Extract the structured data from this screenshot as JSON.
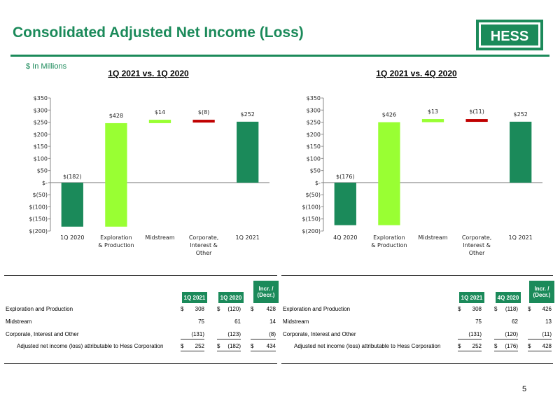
{
  "title": "Consolidated Adjusted Net Income (Loss)",
  "units": "$ In Millions",
  "logo_text": "HESS",
  "page_number": "5",
  "colors": {
    "brand_green": "#1b8a5a",
    "light_green": "#99ff33",
    "red": "#c00000"
  },
  "chart_data": [
    {
      "type": "bar",
      "subtype": "waterfall",
      "title": "1Q 2021 vs. 1Q 2020",
      "categories": [
        "1Q 2020",
        "Exploration & Production",
        "Midstream",
        "Corporate, Interest & Other",
        "1Q 2021"
      ],
      "values": [
        -182,
        428,
        14,
        -8,
        252
      ],
      "data_labels": [
        "$(182)",
        "$428",
        "$14",
        "$(8)",
        "$252"
      ],
      "ylim": [
        -200,
        350
      ],
      "yticks": [
        "$(200)",
        "$(150)",
        "$(100)",
        "$(50)",
        "$-",
        "$50",
        "$100",
        "$150",
        "$200",
        "$250",
        "$300",
        "$350"
      ]
    },
    {
      "type": "bar",
      "subtype": "waterfall",
      "title": "1Q 2021 vs. 4Q 2020",
      "categories": [
        "4Q 2020",
        "Exploration & Production",
        "Midstream",
        "Corporate, Interest & Other",
        "1Q 2021"
      ],
      "values": [
        -176,
        426,
        13,
        -11,
        252
      ],
      "data_labels": [
        "$(176)",
        "$426",
        "$13",
        "$(11)",
        "$252"
      ],
      "ylim": [
        -200,
        350
      ],
      "yticks": [
        "$(200)",
        "$(150)",
        "$(100)",
        "$(50)",
        "$-",
        "$50",
        "$100",
        "$150",
        "$200",
        "$250",
        "$300",
        "$350"
      ]
    }
  ],
  "tables": [
    {
      "headers": [
        "1Q 2021",
        "1Q 2020",
        "Incr. / (Decr.)"
      ],
      "rows": [
        {
          "label": "Exploration and Production",
          "cur_sym": "$",
          "cur": "308",
          "prev_sym": "$",
          "prev": "(120)",
          "chg_sym": "$",
          "chg": "428"
        },
        {
          "label": "Midstream",
          "cur_sym": "",
          "cur": "75",
          "prev_sym": "",
          "prev": "61",
          "chg_sym": "",
          "chg": "14"
        },
        {
          "label": "Corporate, Interest and Other",
          "cur_sym": "",
          "cur": "(131)",
          "prev_sym": "",
          "prev": "(123)",
          "chg_sym": "",
          "chg": "(8)"
        },
        {
          "label": "Adjusted net income (loss) attributable to Hess Corporation",
          "cur_sym": "$",
          "cur": "252",
          "prev_sym": "$",
          "prev": "(182)",
          "chg_sym": "$",
          "chg": "434"
        }
      ]
    },
    {
      "headers": [
        "1Q 2021",
        "4Q 2020",
        "Incr. / (Decr.)"
      ],
      "rows": [
        {
          "label": "Exploration and Production",
          "cur_sym": "$",
          "cur": "308",
          "prev_sym": "$",
          "prev": "(118)",
          "chg_sym": "$",
          "chg": "426"
        },
        {
          "label": "Midstream",
          "cur_sym": "",
          "cur": "75",
          "prev_sym": "",
          "prev": "62",
          "chg_sym": "",
          "chg": "13"
        },
        {
          "label": "Corporate, Interest and Other",
          "cur_sym": "",
          "cur": "(131)",
          "prev_sym": "",
          "prev": "(120)",
          "chg_sym": "",
          "chg": "(11)"
        },
        {
          "label": "Adjusted net income (loss) attributable to Hess Corporation",
          "cur_sym": "$",
          "cur": "252",
          "prev_sym": "$",
          "prev": "(176)",
          "chg_sym": "$",
          "chg": "428"
        }
      ]
    }
  ]
}
